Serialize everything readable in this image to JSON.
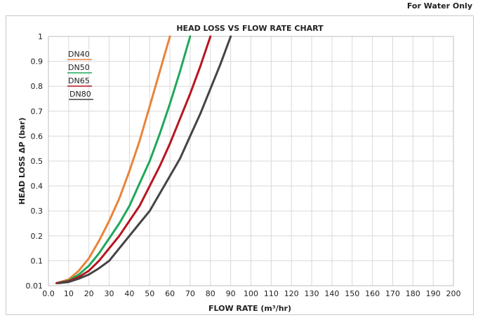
{
  "note": "For Water Only",
  "chart_data": {
    "type": "line",
    "title": "HEAD LOSS VS FLOW RATE CHART",
    "xlabel": "FLOW RATE (m³/hr)",
    "ylabel": "HEAD LOSS ΔP (bar)",
    "xlim": [
      0,
      200
    ],
    "ylim": [
      0,
      1
    ],
    "grid": true,
    "legend_position": "top-left",
    "x_ticks": [
      "0.0",
      "10",
      "20",
      "30",
      "40",
      "50",
      "60",
      "70",
      "80",
      "90",
      "100",
      "110",
      "120",
      "130",
      "140",
      "150",
      "160",
      "170",
      "180",
      "190",
      "200"
    ],
    "y_ticks": [
      "0.01",
      "0.1",
      "0.2",
      "0.3",
      "0.4",
      "0.5",
      "0.6",
      "0.7",
      "0.8",
      "0.9",
      "1"
    ],
    "series": [
      {
        "name": "DN40",
        "color": "#E8843A",
        "x": [
          4,
          10,
          15,
          20,
          25,
          30,
          35,
          40,
          45,
          50,
          55,
          60
        ],
        "y": [
          0.01,
          0.025,
          0.06,
          0.11,
          0.18,
          0.26,
          0.35,
          0.46,
          0.58,
          0.72,
          0.86,
          1.0
        ]
      },
      {
        "name": "DN50",
        "color": "#1FA85A",
        "x": [
          4,
          10,
          15,
          20,
          25,
          30,
          35,
          40,
          45,
          50,
          55,
          60,
          65,
          70
        ],
        "y": [
          0.01,
          0.02,
          0.045,
          0.08,
          0.13,
          0.19,
          0.25,
          0.32,
          0.41,
          0.5,
          0.61,
          0.73,
          0.86,
          1.0
        ]
      },
      {
        "name": "DN65",
        "color": "#B7151F",
        "x": [
          4,
          10,
          15,
          20,
          25,
          30,
          35,
          40,
          45,
          50,
          55,
          60,
          65,
          70,
          75,
          80
        ],
        "y": [
          0.01,
          0.018,
          0.035,
          0.06,
          0.1,
          0.15,
          0.2,
          0.26,
          0.32,
          0.4,
          0.48,
          0.57,
          0.67,
          0.77,
          0.88,
          1.0
        ]
      },
      {
        "name": "DN80",
        "color": "#444444",
        "x": [
          5,
          10,
          15,
          20,
          25,
          30,
          35,
          40,
          45,
          50,
          55,
          60,
          65,
          70,
          75,
          80,
          85,
          90
        ],
        "y": [
          0.01,
          0.015,
          0.028,
          0.045,
          0.07,
          0.1,
          0.15,
          0.2,
          0.25,
          0.3,
          0.37,
          0.44,
          0.51,
          0.6,
          0.69,
          0.79,
          0.89,
          1.0
        ]
      }
    ]
  }
}
